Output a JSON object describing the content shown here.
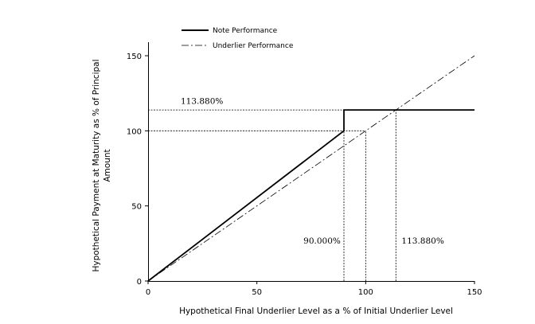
{
  "chart_data": {
    "type": "line",
    "title": "",
    "xlabel": "Hypothetical Final Underlier Level as a % of Initial Underlier Level",
    "ylabel_lines": [
      "Hypothetical Payment at Maturity as % of Principal",
      "Amount"
    ],
    "xlim": [
      0,
      150
    ],
    "ylim": [
      0,
      150
    ],
    "xticks": [
      0,
      50,
      100,
      150
    ],
    "yticks": [
      0,
      50,
      100,
      150
    ],
    "grid": false,
    "legend_position": "top-left",
    "series": [
      {
        "name": "Note Performance",
        "style": "solid",
        "color": "#000000",
        "x": [
          0,
          90,
          90,
          150
        ],
        "y": [
          0,
          100,
          113.88,
          113.88
        ]
      },
      {
        "name": "Underlier Performance",
        "style": "dash-dot",
        "color": "#000000",
        "x": [
          0,
          150
        ],
        "y": [
          0,
          150
        ]
      }
    ],
    "reference_lines": [
      {
        "type": "horizontal",
        "y": 113.88,
        "x_from": 0,
        "x_to": 90
      },
      {
        "type": "horizontal",
        "y": 100,
        "x_from": 0,
        "x_to": 100
      },
      {
        "type": "vertical",
        "x": 90,
        "y_from": 0,
        "y_to": 100
      },
      {
        "type": "vertical",
        "x": 100,
        "y_from": 0,
        "y_to": 100
      },
      {
        "type": "vertical",
        "x": 113.88,
        "y_from": 0,
        "y_to": 113.88
      }
    ],
    "annotations": [
      {
        "text": "113.880%",
        "x": 15,
        "y": 118,
        "anchor": "start"
      },
      {
        "text": "90.000%",
        "x": 88.5,
        "y": 25,
        "anchor": "end"
      },
      {
        "text": "113.880%",
        "x": 116.5,
        "y": 25,
        "anchor": "start"
      }
    ]
  }
}
